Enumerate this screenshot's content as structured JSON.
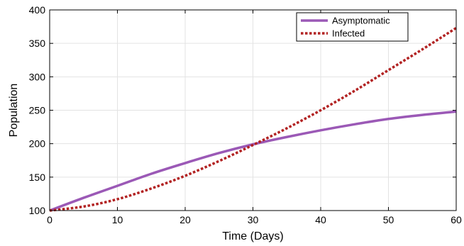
{
  "chart_data": {
    "type": "line",
    "title": "",
    "xlabel": "Time (Days)",
    "ylabel": "Population",
    "xlim": [
      0,
      60
    ],
    "ylim": [
      100,
      400
    ],
    "xticks": [
      0,
      10,
      20,
      30,
      40,
      50,
      60
    ],
    "yticks": [
      100,
      150,
      200,
      250,
      300,
      350,
      400
    ],
    "grid": true,
    "legend_position": "top-right",
    "x": [
      0,
      5,
      10,
      15,
      20,
      25,
      30,
      35,
      40,
      45,
      50,
      55,
      60
    ],
    "series": [
      {
        "name": "Asymptomatic",
        "style": "solid",
        "color": "#9b59b6",
        "values": [
          100,
          119,
          137,
          155,
          171,
          186,
          199,
          210,
          220,
          229,
          237,
          243,
          248
        ]
      },
      {
        "name": "Infected",
        "style": "dotted",
        "color": "#b22222",
        "values": [
          100,
          106,
          117,
          133,
          152,
          174,
          198,
          223,
          250,
          279,
          310,
          341,
          373
        ]
      }
    ]
  }
}
